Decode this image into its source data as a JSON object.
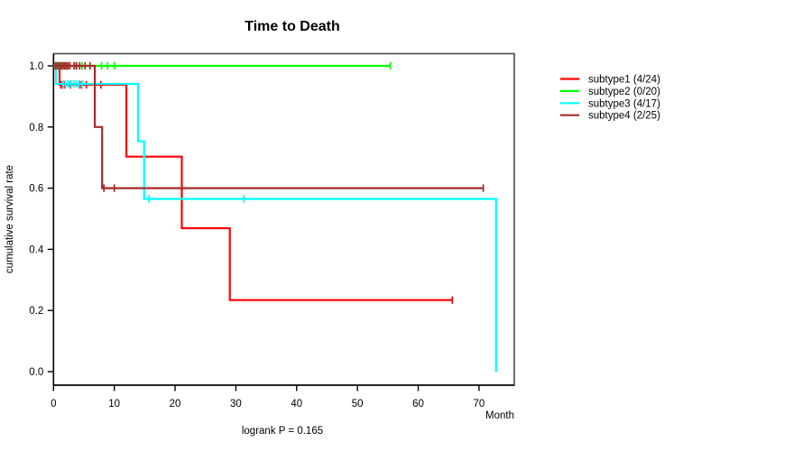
{
  "chart_data": {
    "type": "line",
    "chart_kind": "kaplan-meier-step",
    "title": "Time to Death",
    "xlabel": "Month",
    "ylabel": "cumulative survival rate",
    "annotation": "logrank P = 0.165",
    "x_ticks": [
      0,
      10,
      20,
      30,
      40,
      50,
      60,
      70
    ],
    "y_tick_labels": [
      "0.0",
      "0.2",
      "0.4",
      "0.6",
      "0.8",
      "1.0"
    ],
    "y_tick_values": [
      0.0,
      0.2,
      0.4,
      0.6,
      0.8,
      1.0
    ],
    "xlim": [
      0,
      75.8
    ],
    "ylim": [
      0,
      1.04
    ],
    "grid": false,
    "legend_position": "right-outside",
    "series": [
      {
        "name": "subtype1",
        "legend_label": "subtype1 (4/24)",
        "color": "#FF0000",
        "steps": [
          [
            0,
            1
          ],
          [
            1.0,
            1
          ],
          [
            1.0,
            0.938
          ],
          [
            12.0,
            0.938
          ],
          [
            12.0,
            0.703
          ],
          [
            21.1,
            0.703
          ],
          [
            21.1,
            0.469
          ],
          [
            29.0,
            0.469
          ],
          [
            29.0,
            0.234
          ],
          [
            65.6,
            0.234
          ]
        ],
        "censor_marks": [
          [
            1.2,
            0.938
          ],
          [
            1.5,
            0.938
          ],
          [
            1.9,
            0.938
          ],
          [
            2.8,
            0.938
          ],
          [
            4.3,
            0.938
          ],
          [
            4.6,
            0.938
          ],
          [
            5.4,
            0.938
          ],
          [
            7.8,
            0.938
          ],
          [
            65.6,
            0.234
          ]
        ]
      },
      {
        "name": "subtype2",
        "legend_label": "subtype2 (0/20)",
        "color": "#00FF00",
        "steps": [
          [
            0,
            1
          ],
          [
            55.4,
            1
          ]
        ],
        "censor_marks": [
          [
            0.4,
            1
          ],
          [
            0.7,
            1
          ],
          [
            1.0,
            1
          ],
          [
            1.3,
            1
          ],
          [
            1.6,
            1
          ],
          [
            1.9,
            1
          ],
          [
            2.2,
            1
          ],
          [
            3.5,
            1
          ],
          [
            4.3,
            1
          ],
          [
            4.7,
            1
          ],
          [
            7.9,
            1
          ],
          [
            8.9,
            1
          ],
          [
            10.0,
            1
          ],
          [
            55.4,
            1
          ]
        ]
      },
      {
        "name": "subtype3",
        "legend_label": "subtype3 (4/17)",
        "color": "#00FFFF",
        "steps": [
          [
            0,
            1
          ],
          [
            0.4,
            1
          ],
          [
            0.4,
            0.941
          ],
          [
            13.9,
            0.941
          ],
          [
            13.9,
            0.753
          ],
          [
            14.9,
            0.753
          ],
          [
            14.9,
            0.565
          ],
          [
            72.8,
            0.565
          ],
          [
            72.8,
            0
          ]
        ],
        "censor_marks": [
          [
            1.6,
            0.941
          ],
          [
            2.0,
            0.941
          ],
          [
            2.4,
            0.941
          ],
          [
            2.9,
            0.941
          ],
          [
            3.3,
            0.941
          ],
          [
            3.7,
            0.941
          ],
          [
            4.2,
            0.941
          ],
          [
            4.7,
            0.941
          ],
          [
            15.7,
            0.565
          ],
          [
            31.3,
            0.565
          ]
        ]
      },
      {
        "name": "subtype4",
        "legend_label": "subtype4 (2/25)",
        "color": "#A52A2A",
        "steps": [
          [
            0,
            1
          ],
          [
            6.8,
            1
          ],
          [
            6.8,
            0.8
          ],
          [
            8.0,
            0.8
          ],
          [
            8.0,
            0.6
          ],
          [
            70.7,
            0.6
          ]
        ],
        "censor_marks": [
          [
            0.3,
            1
          ],
          [
            0.6,
            1
          ],
          [
            0.9,
            1
          ],
          [
            1.2,
            1
          ],
          [
            1.5,
            1
          ],
          [
            1.8,
            1
          ],
          [
            2.1,
            1
          ],
          [
            2.4,
            1
          ],
          [
            2.7,
            1
          ],
          [
            3.4,
            1
          ],
          [
            3.8,
            1
          ],
          [
            4.3,
            1
          ],
          [
            5.2,
            1
          ],
          [
            6.0,
            1
          ],
          [
            8.3,
            0.6
          ],
          [
            10.0,
            0.6
          ],
          [
            70.7,
            0.6
          ]
        ]
      }
    ]
  }
}
